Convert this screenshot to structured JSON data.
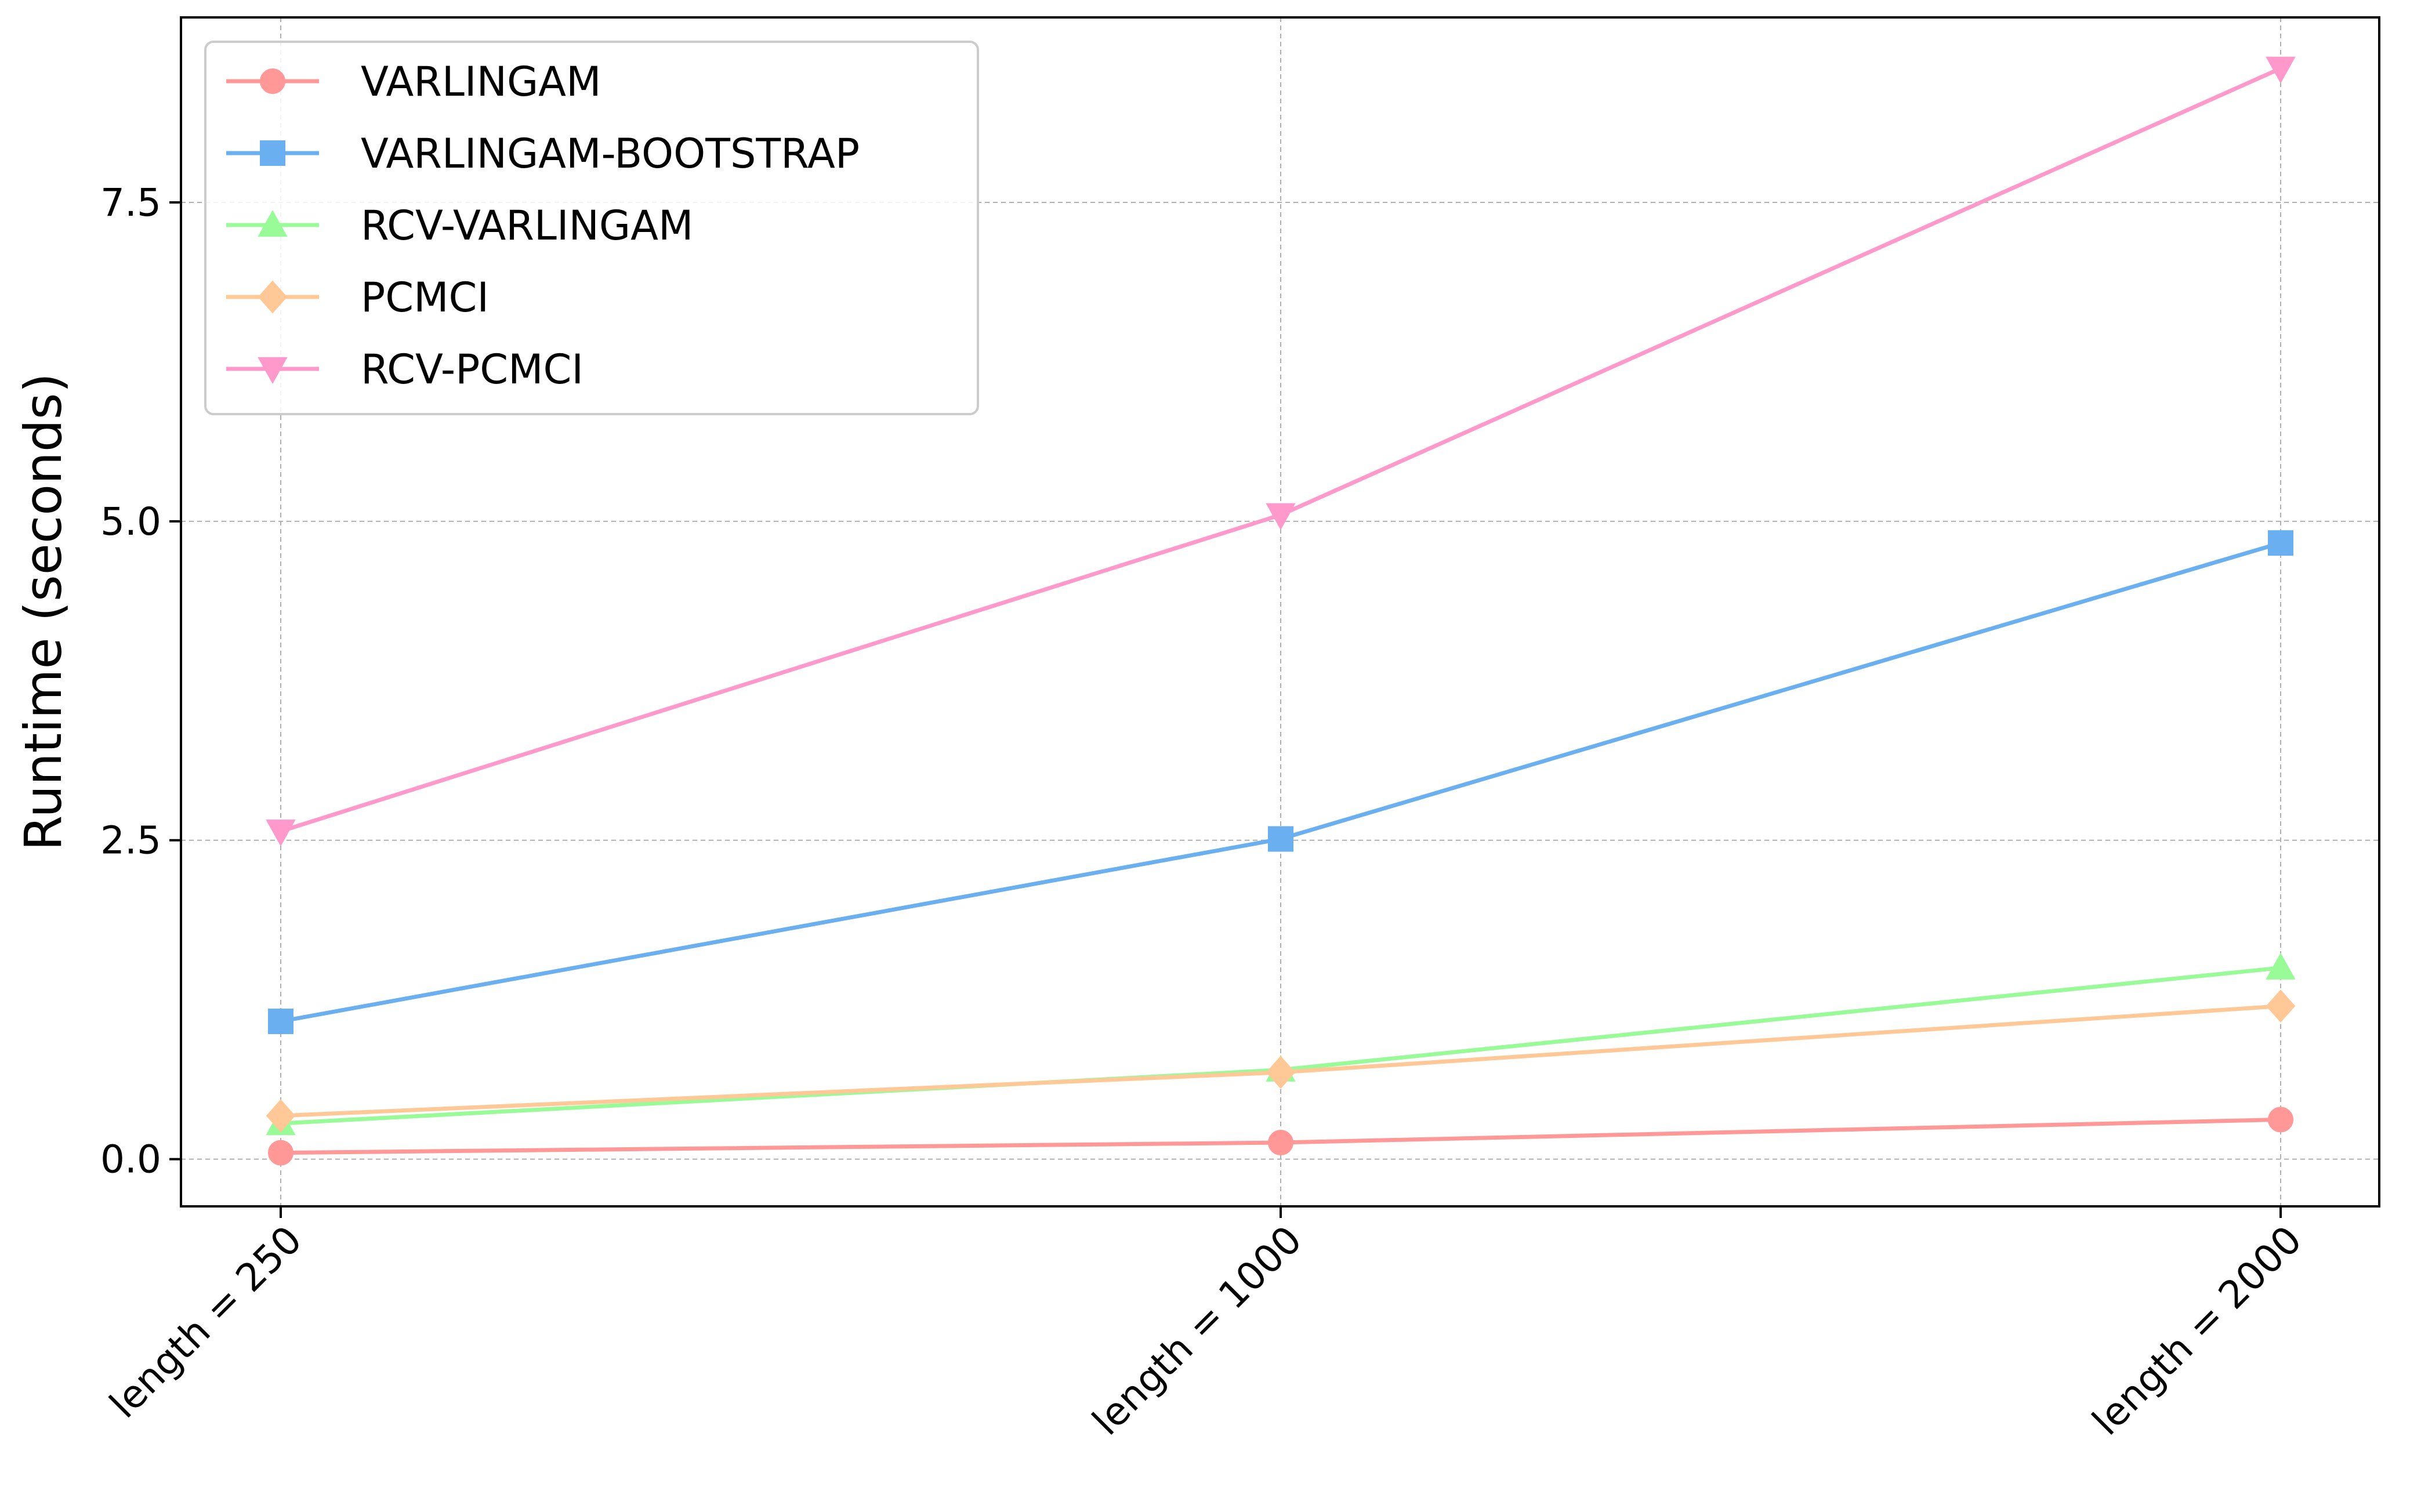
{
  "chart_data": {
    "type": "line",
    "title": "",
    "xlabel": "",
    "ylabel": "Runtime (seconds)",
    "categories": [
      "length = 250",
      "length = 1000",
      "length = 2000"
    ],
    "yticks": [
      "0.0",
      "2.5",
      "5.0",
      "7.5"
    ],
    "ytick_values": [
      0.0,
      2.5,
      5.0,
      7.5
    ],
    "ylim": [
      -0.37,
      8.95
    ],
    "grid": true,
    "legend_position": "top-left",
    "series": [
      {
        "name": "VARLINGAM",
        "color": "#ff9896",
        "marker": "circle",
        "values": [
          0.05,
          0.13,
          0.31
        ]
      },
      {
        "name": "VARLINGAM-BOOTSTRAP",
        "color": "#6aaff0",
        "marker": "square",
        "values": [
          1.08,
          2.51,
          4.83
        ]
      },
      {
        "name": "RCV-VARLINGAM",
        "color": "#98fb98",
        "marker": "triangle-up",
        "values": [
          0.28,
          0.7,
          1.5
        ]
      },
      {
        "name": "PCMCI",
        "color": "#ffc896",
        "marker": "diamond",
        "values": [
          0.34,
          0.68,
          1.2
        ]
      },
      {
        "name": "RCV-PCMCI",
        "color": "#ff99cc",
        "marker": "triangle-down",
        "values": [
          2.57,
          5.05,
          8.55
        ]
      }
    ]
  }
}
